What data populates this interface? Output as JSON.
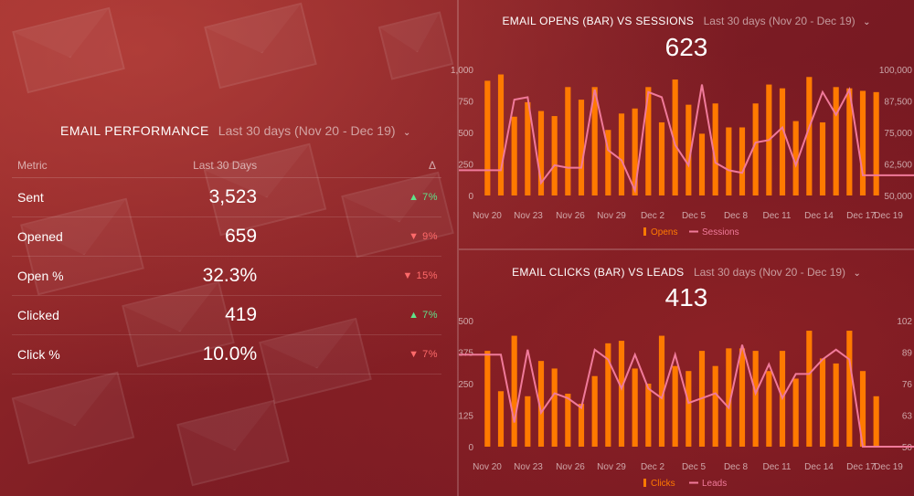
{
  "performance": {
    "title": "EMAIL PERFORMANCE",
    "range": "Last 30 days (Nov 20 - Dec 19)",
    "columns": {
      "metric": "Metric",
      "period": "Last 30 Days",
      "delta": "Δ"
    },
    "rows": [
      {
        "metric": "Sent",
        "value": "3,523",
        "dir": "up",
        "delta": "7%",
        "arrow": "▲"
      },
      {
        "metric": "Opened",
        "value": "659",
        "dir": "down",
        "delta": "9%",
        "arrow": "▼"
      },
      {
        "metric": "Open %",
        "value": "32.3%",
        "dir": "down",
        "delta": "15%",
        "arrow": "▼"
      },
      {
        "metric": "Clicked",
        "value": "419",
        "dir": "up",
        "delta": "7%",
        "arrow": "▲"
      },
      {
        "metric": "Click %",
        "value": "10.0%",
        "dir": "down",
        "delta": "7%",
        "arrow": "▼"
      }
    ]
  },
  "colors": {
    "bar": "#ff7a00",
    "line": "#f07a9a",
    "axis": "rgba(255,255,255,0.6)"
  },
  "chart_data": [
    {
      "type": "bar",
      "title": "EMAIL OPENS (BAR) VS SESSIONS",
      "range": "Last 30 days (Nov 20 - Dec 19)",
      "total": "623",
      "x_ticks": [
        "Nov 20",
        "Nov 23",
        "Nov 26",
        "Nov 29",
        "Dec 2",
        "Dec 5",
        "Dec 8",
        "Dec 11",
        "Dec 14",
        "Dec 17",
        "Dec 19"
      ],
      "y_ticks_left": [
        "1,000",
        "750",
        "500",
        "250",
        "0"
      ],
      "y_ticks_right": [
        "100,000",
        "87,500",
        "75,000",
        "62,500",
        "50,000"
      ],
      "ylim_left": [
        0,
        1000
      ],
      "ylim_right": [
        50000,
        100000
      ],
      "legend": [
        "Opens",
        "Sessions"
      ],
      "bars": [
        910,
        960,
        625,
        740,
        670,
        630,
        860,
        760,
        860,
        520,
        650,
        690,
        860,
        580,
        920,
        720,
        490,
        730,
        540,
        540,
        730,
        880,
        850,
        590,
        940,
        580,
        860,
        850,
        830,
        820
      ],
      "line": [
        60000,
        60000,
        88000,
        89000,
        55000,
        62000,
        61000,
        61000,
        92000,
        68000,
        64000,
        52000,
        91000,
        89000,
        70000,
        62000,
        94000,
        63000,
        60000,
        59000,
        71000,
        72000,
        77000,
        62000,
        77000,
        91000,
        82000,
        92000,
        58000,
        58000
      ]
    },
    {
      "type": "bar",
      "title": "EMAIL CLICKS (BAR) VS LEADS",
      "range": "Last 30 days (Nov 20 - Dec 19)",
      "total": "413",
      "x_ticks": [
        "Nov 20",
        "Nov 23",
        "Nov 26",
        "Nov 29",
        "Dec 2",
        "Dec 5",
        "Dec 8",
        "Dec 11",
        "Dec 14",
        "Dec 17",
        "Dec 19"
      ],
      "y_ticks_left": [
        "500",
        "375",
        "250",
        "125",
        "0"
      ],
      "y_ticks_right": [
        "102",
        "89",
        "76",
        "63",
        "50"
      ],
      "ylim_left": [
        0,
        500
      ],
      "ylim_right": [
        50,
        102
      ],
      "legend": [
        "Clicks",
        "Leads"
      ],
      "bars": [
        380,
        220,
        440,
        200,
        340,
        310,
        210,
        170,
        280,
        410,
        420,
        310,
        250,
        440,
        320,
        300,
        380,
        320,
        390,
        390,
        380,
        300,
        380,
        270,
        460,
        350,
        330,
        460,
        300,
        200
      ],
      "line": [
        88,
        88,
        60,
        90,
        64,
        72,
        70,
        66,
        90,
        86,
        74,
        88,
        74,
        70,
        88,
        68,
        70,
        72,
        66,
        92,
        72,
        84,
        70,
        80,
        80,
        86,
        90,
        86,
        50,
        50
      ]
    }
  ]
}
